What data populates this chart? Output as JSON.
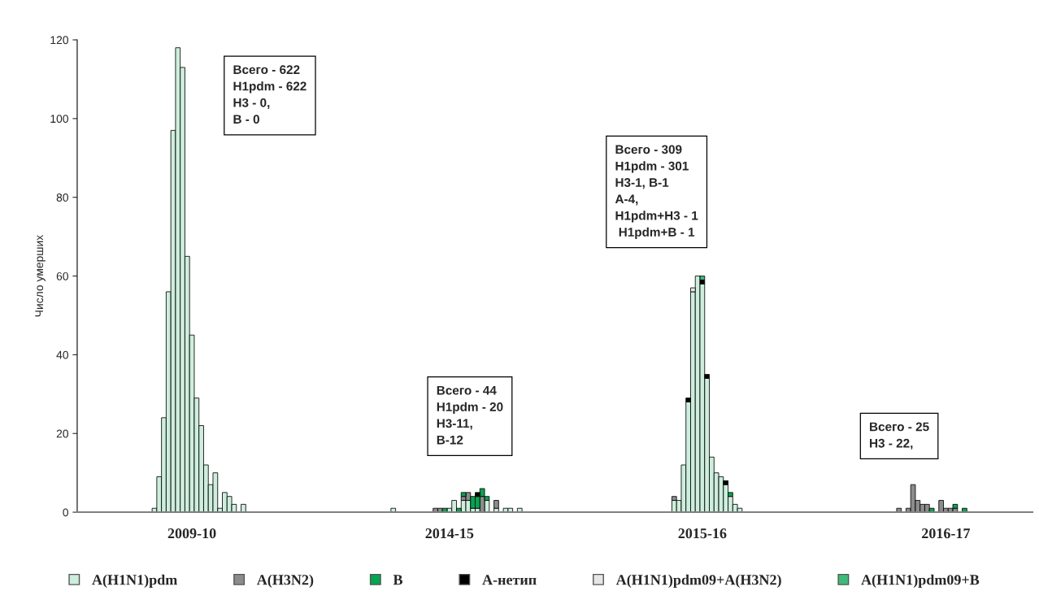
{
  "chart_data": {
    "type": "bar",
    "stacked": true,
    "ylabel": "Число умерших",
    "ylim": [
      0,
      120
    ],
    "yticks": [
      0,
      20,
      40,
      60,
      80,
      100,
      120
    ],
    "categories": [
      null,
      null,
      null,
      null,
      null,
      null,
      null,
      null,
      null,
      null,
      null,
      null,
      null,
      null,
      null,
      null,
      null,
      null,
      null,
      null,
      null,
      null,
      null,
      null,
      "2009-10",
      null,
      null,
      null,
      null,
      null,
      null,
      null,
      null,
      null,
      null,
      null,
      null,
      null,
      null,
      null,
      null,
      null,
      null,
      null,
      null,
      null,
      null,
      null,
      null,
      null,
      null,
      null,
      null,
      null,
      null,
      null,
      null,
      null,
      null,
      null,
      null,
      null,
      null,
      null,
      null,
      null,
      null,
      null,
      null,
      null,
      null,
      null,
      null,
      null,
      null,
      null,
      null,
      null,
      null,
      "2014-15",
      null,
      null,
      null,
      null,
      null,
      null,
      null,
      null,
      null,
      null,
      null,
      null,
      null,
      null,
      null,
      null,
      null,
      null,
      null,
      null,
      null,
      null,
      null,
      null,
      null,
      null,
      null,
      null,
      null,
      null,
      null,
      null,
      null,
      null,
      null,
      null,
      null,
      null,
      null,
      null,
      null,
      null,
      null,
      null,
      null,
      null,
      null,
      null,
      null,
      null,
      null,
      null,
      null,
      "2015-16",
      null,
      null,
      null,
      null,
      null,
      null,
      null,
      null,
      null,
      null,
      null,
      null,
      null,
      null,
      null,
      null,
      null,
      null,
      null,
      null,
      null,
      null,
      null,
      null,
      null,
      null,
      null,
      null,
      null,
      null,
      null,
      null,
      null,
      null,
      null,
      null,
      null,
      null,
      null,
      null,
      null,
      null,
      null,
      null,
      null,
      null,
      null,
      null,
      null,
      null,
      null,
      "2016-17",
      null,
      null,
      null,
      null,
      null,
      null,
      null,
      null,
      null,
      null,
      null,
      null,
      null,
      null,
      null,
      null,
      null,
      null
    ],
    "grid": false,
    "legend": "bottom",
    "annotations": [
      "Всего - 622\nH1pdm - 622\nH3 - 0,\nB - 0",
      "Всего - 44\nH1pdm - 20\nH3-11,\nB-12",
      "Всего - 309\nH1pdm - 301\nH3-1, B-1\nA-4,\nH1pdm+H3 - 1\n H1pdm+B - 1",
      "Всего - 25\nH3 - 22,"
    ],
    "series": [
      {
        "name": "A(H1N1)pdm",
        "color": "#cdeedd",
        "values": [
          null,
          null,
          null,
          null,
          null,
          null,
          null,
          null,
          null,
          null,
          null,
          null,
          null,
          null,
          null,
          null,
          1,
          9,
          24,
          56,
          97,
          118,
          113,
          65,
          45,
          29,
          22,
          12,
          7,
          10,
          1,
          5,
          4,
          2,
          null,
          2,
          null,
          null,
          null,
          null,
          null,
          null,
          null,
          null,
          null,
          null,
          null,
          null,
          null,
          null,
          null,
          null,
          null,
          null,
          null,
          null,
          null,
          null,
          null,
          null,
          null,
          null,
          null,
          null,
          null,
          null,
          null,
          1,
          null,
          null,
          null,
          null,
          null,
          null,
          null,
          null,
          null,
          null,
          null,
          1,
          3,
          null,
          3,
          3,
          1,
          1,
          null,
          3,
          null,
          1,
          null,
          1,
          1,
          null,
          1,
          null,
          null,
          null,
          null,
          null,
          null,
          null,
          null,
          null,
          null,
          null,
          null,
          null,
          null,
          null,
          null,
          null,
          null,
          null,
          null,
          null,
          null,
          null,
          null,
          null,
          null,
          null,
          null,
          null,
          null,
          null,
          null,
          3,
          3,
          12,
          28,
          56,
          60,
          58,
          34,
          14,
          10,
          9,
          7,
          4,
          2,
          1,
          null,
          null,
          null,
          null,
          null,
          null,
          null,
          null,
          null,
          null,
          null,
          null,
          null,
          null,
          null,
          null,
          null,
          null,
          null,
          null,
          null,
          null,
          null,
          null,
          null,
          null,
          null,
          null,
          null,
          null,
          null,
          null,
          null,
          null,
          null,
          null,
          null,
          null,
          null,
          null,
          null,
          null,
          null,
          null,
          null,
          null,
          null,
          null,
          null,
          null,
          null,
          null,
          null,
          null,
          null,
          null,
          null,
          null,
          null,
          null,
          null,
          null
        ]
      },
      {
        "name": "A(H3N2)",
        "color": "#8c8c8c",
        "values": [
          null,
          null,
          null,
          null,
          null,
          null,
          null,
          null,
          null,
          null,
          null,
          null,
          null,
          null,
          null,
          null,
          null,
          null,
          null,
          null,
          null,
          null,
          null,
          null,
          null,
          null,
          null,
          null,
          null,
          null,
          null,
          null,
          null,
          null,
          null,
          null,
          null,
          null,
          null,
          null,
          null,
          null,
          null,
          null,
          null,
          null,
          null,
          null,
          null,
          null,
          null,
          null,
          null,
          null,
          null,
          null,
          null,
          null,
          null,
          null,
          null,
          null,
          null,
          null,
          null,
          null,
          null,
          null,
          null,
          null,
          null,
          null,
          null,
          null,
          null,
          null,
          1,
          1,
          null,
          null,
          null,
          null,
          1,
          2,
          null,
          null,
          4,
          null,
          null,
          2,
          null,
          null,
          null,
          null,
          null,
          null,
          null,
          null,
          null,
          null,
          null,
          null,
          null,
          null,
          null,
          null,
          null,
          null,
          null,
          null,
          null,
          null,
          null,
          null,
          null,
          null,
          null,
          null,
          null,
          null,
          null,
          null,
          null,
          null,
          null,
          null,
          null,
          1,
          null,
          null,
          null,
          null,
          null,
          null,
          null,
          null,
          null,
          null,
          null,
          null,
          null,
          null,
          null,
          null,
          null,
          null,
          null,
          null,
          null,
          null,
          null,
          null,
          null,
          null,
          null,
          null,
          null,
          null,
          null,
          null,
          null,
          null,
          null,
          null,
          null,
          null,
          null,
          null,
          null,
          null,
          null,
          null,
          null,
          null,
          null,
          1,
          null,
          1,
          7,
          3,
          2,
          2,
          null,
          null,
          3,
          1,
          1,
          1,
          null,
          null,
          null,
          null,
          null,
          null,
          null,
          null,
          null,
          null,
          null,
          null,
          null,
          null,
          null,
          null
        ]
      },
      {
        "name": "B",
        "color": "#00a651",
        "values": [
          null,
          null,
          null,
          null,
          null,
          null,
          null,
          null,
          null,
          null,
          null,
          null,
          null,
          null,
          null,
          null,
          null,
          null,
          null,
          null,
          null,
          null,
          null,
          null,
          null,
          null,
          null,
          null,
          null,
          null,
          null,
          null,
          null,
          null,
          null,
          null,
          null,
          null,
          null,
          null,
          null,
          null,
          null,
          null,
          null,
          null,
          null,
          null,
          null,
          null,
          null,
          null,
          null,
          null,
          null,
          null,
          null,
          null,
          null,
          null,
          null,
          null,
          null,
          null,
          null,
          null,
          null,
          null,
          null,
          null,
          null,
          null,
          null,
          null,
          null,
          null,
          null,
          null,
          1,
          null,
          null,
          1,
          1,
          null,
          3,
          3,
          2,
          1,
          null,
          null,
          null,
          null,
          null,
          null,
          null,
          null,
          null,
          null,
          null,
          null,
          null,
          null,
          null,
          null,
          null,
          null,
          null,
          null,
          null,
          null,
          null,
          null,
          null,
          null,
          null,
          null,
          null,
          null,
          null,
          null,
          null,
          null,
          null,
          null,
          null,
          null,
          null,
          null,
          null,
          null,
          null,
          null,
          null,
          null,
          null,
          null,
          null,
          null,
          null,
          1,
          null,
          null,
          null,
          null,
          null,
          null,
          null,
          null,
          null,
          null,
          null,
          null,
          null,
          null,
          null,
          null,
          null,
          null,
          null,
          null,
          null,
          null,
          null,
          null,
          null,
          null,
          null,
          null,
          null,
          null,
          null,
          null,
          null,
          null,
          null,
          null,
          null,
          null,
          null,
          null,
          null,
          null,
          1,
          null,
          null,
          null,
          null,
          1,
          null,
          1,
          null,
          null,
          null,
          null,
          null,
          null,
          null,
          null,
          null,
          null,
          null,
          null,
          null,
          null
        ]
      },
      {
        "name": "A-нетип",
        "color": "#000000",
        "values": [
          null,
          null,
          null,
          null,
          null,
          null,
          null,
          null,
          null,
          null,
          null,
          null,
          null,
          null,
          null,
          null,
          null,
          null,
          null,
          null,
          null,
          null,
          null,
          null,
          null,
          null,
          null,
          null,
          null,
          null,
          null,
          null,
          null,
          null,
          null,
          null,
          null,
          null,
          null,
          null,
          null,
          null,
          null,
          null,
          null,
          null,
          null,
          null,
          null,
          null,
          null,
          null,
          null,
          null,
          null,
          null,
          null,
          null,
          null,
          null,
          null,
          null,
          null,
          null,
          null,
          null,
          null,
          null,
          null,
          null,
          null,
          null,
          null,
          null,
          null,
          null,
          null,
          null,
          null,
          null,
          null,
          null,
          null,
          null,
          null,
          1,
          null,
          null,
          null,
          null,
          null,
          null,
          null,
          null,
          null,
          null,
          null,
          null,
          null,
          null,
          null,
          null,
          null,
          null,
          null,
          null,
          null,
          null,
          null,
          null,
          null,
          null,
          null,
          null,
          null,
          null,
          null,
          null,
          null,
          null,
          null,
          null,
          null,
          null,
          null,
          null,
          null,
          null,
          null,
          null,
          1,
          null,
          null,
          1,
          1,
          null,
          null,
          null,
          1,
          null,
          null,
          null,
          null,
          null,
          null,
          null,
          null,
          null,
          null,
          null,
          null,
          null,
          null,
          null,
          null,
          null,
          null,
          null,
          null,
          null,
          null,
          null,
          null,
          null,
          null,
          null,
          null,
          null,
          null,
          null,
          null,
          null,
          null,
          null,
          null,
          null,
          null,
          null,
          null,
          null,
          null,
          null,
          null,
          null,
          null,
          null,
          null,
          null,
          null,
          null,
          null,
          null,
          null,
          null,
          null,
          null,
          null,
          null,
          null,
          null,
          null,
          null,
          null,
          null
        ]
      },
      {
        "name": "A(H1N1)pdm09+A(H3N2)",
        "color": "#e6e6e6",
        "values": [
          null,
          null,
          null,
          null,
          null,
          null,
          null,
          null,
          null,
          null,
          null,
          null,
          null,
          null,
          null,
          null,
          null,
          null,
          null,
          null,
          null,
          null,
          null,
          null,
          null,
          null,
          null,
          null,
          null,
          null,
          null,
          null,
          null,
          null,
          null,
          null,
          null,
          null,
          null,
          null,
          null,
          null,
          null,
          null,
          null,
          null,
          null,
          null,
          null,
          null,
          null,
          null,
          null,
          null,
          null,
          null,
          null,
          null,
          null,
          null,
          null,
          null,
          null,
          null,
          null,
          null,
          null,
          null,
          null,
          null,
          null,
          null,
          null,
          null,
          null,
          null,
          null,
          null,
          null,
          null,
          null,
          null,
          null,
          null,
          null,
          null,
          null,
          null,
          null,
          null,
          null,
          null,
          null,
          null,
          null,
          null,
          null,
          null,
          null,
          null,
          null,
          null,
          null,
          null,
          null,
          null,
          null,
          null,
          null,
          null,
          null,
          null,
          null,
          null,
          null,
          null,
          null,
          null,
          null,
          null,
          null,
          null,
          null,
          null,
          null,
          null,
          null,
          null,
          null,
          null,
          null,
          1,
          null,
          null,
          null,
          null,
          null,
          null,
          null,
          null,
          null,
          null,
          null,
          null,
          null,
          null,
          null,
          null,
          null,
          null,
          null,
          null,
          null,
          null,
          null,
          null,
          null,
          null,
          null,
          null,
          null,
          null,
          null,
          null,
          null,
          null,
          null,
          null,
          null,
          null,
          null,
          null,
          null,
          null,
          null,
          null,
          null,
          null,
          null,
          null,
          null,
          null,
          null,
          null,
          null,
          null,
          null,
          null,
          null,
          null,
          null,
          null,
          null,
          null,
          null,
          null,
          null,
          null,
          null,
          null,
          null,
          null,
          null,
          null
        ]
      },
      {
        "name": "A(H1N1)pdm09+B",
        "color": "#3cbc78",
        "values": [
          null,
          null,
          null,
          null,
          null,
          null,
          null,
          null,
          null,
          null,
          null,
          null,
          null,
          null,
          null,
          null,
          null,
          null,
          null,
          null,
          null,
          null,
          null,
          null,
          null,
          null,
          null,
          null,
          null,
          null,
          null,
          null,
          null,
          null,
          null,
          null,
          null,
          null,
          null,
          null,
          null,
          null,
          null,
          null,
          null,
          null,
          null,
          null,
          null,
          null,
          null,
          null,
          null,
          null,
          null,
          null,
          null,
          null,
          null,
          null,
          null,
          null,
          null,
          null,
          null,
          null,
          null,
          null,
          null,
          null,
          null,
          null,
          null,
          null,
          null,
          null,
          null,
          null,
          null,
          null,
          null,
          null,
          null,
          null,
          null,
          null,
          null,
          null,
          null,
          null,
          null,
          null,
          null,
          null,
          null,
          null,
          null,
          null,
          null,
          null,
          null,
          null,
          null,
          null,
          null,
          null,
          null,
          null,
          null,
          null,
          null,
          null,
          null,
          null,
          null,
          null,
          null,
          null,
          null,
          null,
          null,
          null,
          null,
          null,
          null,
          null,
          null,
          null,
          null,
          null,
          null,
          null,
          null,
          1,
          null,
          null,
          null,
          null,
          null,
          null,
          null,
          null,
          null,
          null,
          null,
          null,
          null,
          null,
          null,
          null,
          null,
          null,
          null,
          null,
          null,
          null,
          null,
          null,
          null,
          null,
          null,
          null,
          null,
          null,
          null,
          null,
          null,
          null,
          null,
          null,
          null,
          null,
          null,
          null,
          null,
          null,
          null,
          null,
          null,
          null,
          null,
          null,
          null,
          null,
          null,
          null,
          null,
          null,
          null,
          null,
          null,
          null,
          null,
          null,
          null,
          null,
          null,
          null,
          null,
          null,
          null,
          null,
          null,
          null
        ]
      }
    ]
  }
}
